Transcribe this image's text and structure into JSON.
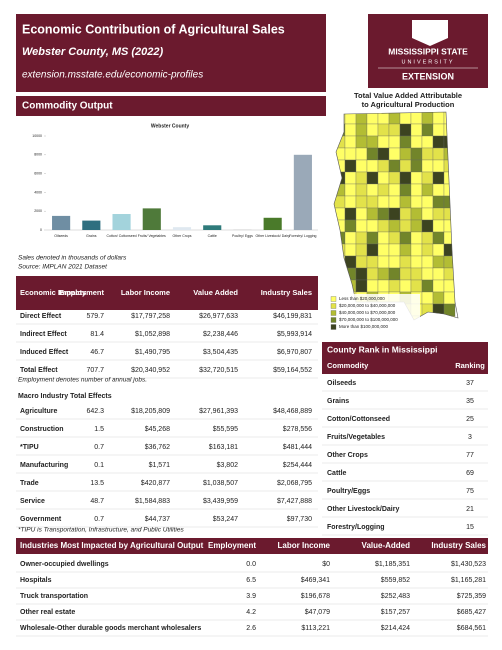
{
  "header": {
    "title": "Economic Contribution of Agricultural Sales",
    "subtitle": "Webster County, MS (2022)",
    "url": "extension.msstate.edu/economic-profiles"
  },
  "logo": {
    "line1": "MISSISSIPPI STATE",
    "line2": "UNIVERSITY",
    "line3": "EXTENSION"
  },
  "map": {
    "title": [
      "Total Value Added Attributable",
      "to Agricultural Production"
    ],
    "legend": [
      "Less than $20,000,000",
      "$20,000,000 to $40,000,000",
      "$40,000,000 to $70,000,000",
      "$70,000,000 to $100,000,000",
      "More than $100,000,000"
    ],
    "colors": [
      "#ffff66",
      "#e2e24a",
      "#b3bd34",
      "#72852a",
      "#3c4320"
    ]
  },
  "commodity_output": {
    "heading": "Commodity Output",
    "chart": {
      "type": "bar",
      "title": "Webster County",
      "categories": [
        "Oilseeds",
        "Grains",
        "Cotton/ Cottonseed",
        "Fruits/ Vegetables",
        "Other Crops",
        "Cattle",
        "Poultry/ Eggs",
        "Other Livestock/ Dairy",
        "Forestry/ Logging"
      ],
      "values": [
        1500,
        1000,
        1700,
        2300,
        300,
        500,
        50,
        1300,
        8000
      ],
      "colors": [
        "#6f8ea3",
        "#2f6f80",
        "#a3d3dc",
        "#4f7a3a",
        "#dfe8f0",
        "#2f7b7b",
        "#cccccc",
        "#4a7a2a",
        "#9aa9b8"
      ],
      "ylim": [
        0,
        10000
      ],
      "yticks": [
        0,
        2000,
        4000,
        6000,
        8000,
        10000
      ]
    },
    "notes": [
      "Sales denoted in thousands of dollars",
      "Source: IMPLAN 2021 Dataset"
    ]
  },
  "impacts": {
    "columns": [
      "Economic Impacts",
      "Employment",
      "Labor Income",
      "Value Added",
      "Industry Sales"
    ],
    "rows": [
      [
        "Direct Effect",
        "579.7",
        "$17,797,258",
        "$26,977,633",
        "$46,199,831"
      ],
      [
        "Indirect Effect",
        "81.4",
        "$1,052,898",
        "$2,238,446",
        "$5,993,914"
      ],
      [
        "Induced Effect",
        "46.7",
        "$1,490,795",
        "$3,504,435",
        "$6,970,807"
      ],
      [
        "Total Effect",
        "707.7",
        "$20,340,952",
        "$32,720,515",
        "$59,164,552"
      ]
    ],
    "note": "Employment denotes number of annual jobs.",
    "macro_heading": "Macro Industry Total Effects",
    "macro_rows": [
      [
        "Agriculture",
        "642.3",
        "$18,205,809",
        "$27,961,393",
        "$48,468,889"
      ],
      [
        "Construction",
        "1.5",
        "$45,268",
        "$55,595",
        "$278,556"
      ],
      [
        "*TIPU",
        "0.7",
        "$36,762",
        "$163,181",
        "$481,444"
      ],
      [
        "Manufacturing",
        "0.1",
        "$1,571",
        "$3,802",
        "$254,444"
      ],
      [
        "Trade",
        "13.5",
        "$420,877",
        "$1,038,507",
        "$2,068,795"
      ],
      [
        "Service",
        "48.7",
        "$1,584,883",
        "$3,439,959",
        "$7,427,888"
      ],
      [
        "Government",
        "0.7",
        "$44,737",
        "$53,247",
        "$97,730"
      ]
    ],
    "macro_note": "*TIPU is Transportation, Infrastructure, and Public Utilities"
  },
  "county_rank": {
    "title": "County Rank in Mississippi",
    "columns": [
      "Commodity",
      "Ranking"
    ],
    "rows": [
      [
        "Oilseeds",
        "37"
      ],
      [
        "Grains",
        "35"
      ],
      [
        "Cotton/Cottonseed",
        "25"
      ],
      [
        "Fruits/Vegetables",
        "3"
      ],
      [
        "Other Crops",
        "77"
      ],
      [
        "Cattle",
        "69"
      ],
      [
        "Poultry/Eggs",
        "75"
      ],
      [
        "Other Livestock/Dairy",
        "21"
      ],
      [
        "Forestry/Logging",
        "15"
      ]
    ]
  },
  "industries": {
    "columns": [
      "Industries Most Impacted by Agricultural Output",
      "Employment",
      "Labor Income",
      "Value-Added",
      "Industry Sales"
    ],
    "rows": [
      [
        "Owner-occupied dwellings",
        "0.0",
        "$0",
        "$1,185,351",
        "$1,430,523"
      ],
      [
        "Hospitals",
        "6.5",
        "$469,341",
        "$559,852",
        "$1,165,281"
      ],
      [
        "Truck transportation",
        "3.9",
        "$196,678",
        "$252,483",
        "$725,359"
      ],
      [
        "Other real estate",
        "4.2",
        "$47,079",
        "$157,257",
        "$685,427"
      ],
      [
        "Wholesale-Other durable goods merchant wholesalers",
        "2.6",
        "$113,221",
        "$214,424",
        "$684,561"
      ]
    ]
  }
}
